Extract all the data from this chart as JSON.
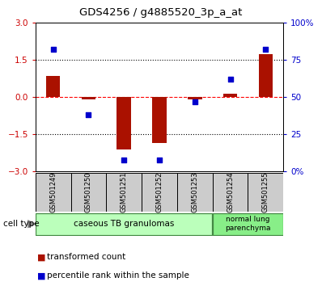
{
  "title": "GDS4256 / g4885520_3p_a_at",
  "samples": [
    "GSM501249",
    "GSM501250",
    "GSM501251",
    "GSM501252",
    "GSM501253",
    "GSM501254",
    "GSM501255"
  ],
  "transformed_count": [
    0.85,
    -0.08,
    -2.1,
    -1.85,
    -0.08,
    0.15,
    1.75
  ],
  "percentile_rank": [
    82,
    38,
    8,
    8,
    47,
    62,
    82
  ],
  "ylim_left": [
    -3,
    3
  ],
  "ylim_right": [
    0,
    100
  ],
  "yticks_left": [
    -3,
    -1.5,
    0,
    1.5,
    3
  ],
  "yticks_right": [
    0,
    25,
    50,
    75,
    100
  ],
  "ytick_labels_right": [
    "0%",
    "25",
    "50",
    "75",
    "100%"
  ],
  "hlines": [
    0,
    1.5,
    -1.5
  ],
  "hline_styles": [
    "dashed",
    "dotted",
    "dotted"
  ],
  "hline_colors": [
    "red",
    "black",
    "black"
  ],
  "bar_color": "#aa1100",
  "dot_color": "#0000cc",
  "bar_width": 0.4,
  "group0_count": 5,
  "group1_count": 2,
  "group0_label": "caseous TB granulomas",
  "group0_color": "#bbffbb",
  "group1_label": "normal lung\nparenchyma",
  "group1_color": "#88ee88",
  "legend_items": [
    {
      "color": "#aa1100",
      "label": "transformed count"
    },
    {
      "color": "#0000cc",
      "label": "percentile rank within the sample"
    }
  ],
  "cell_type_label": "cell type",
  "background_color": "#ffffff",
  "plot_bg": "#ffffff",
  "tick_color_left": "#cc0000",
  "tick_color_right": "#0000cc"
}
